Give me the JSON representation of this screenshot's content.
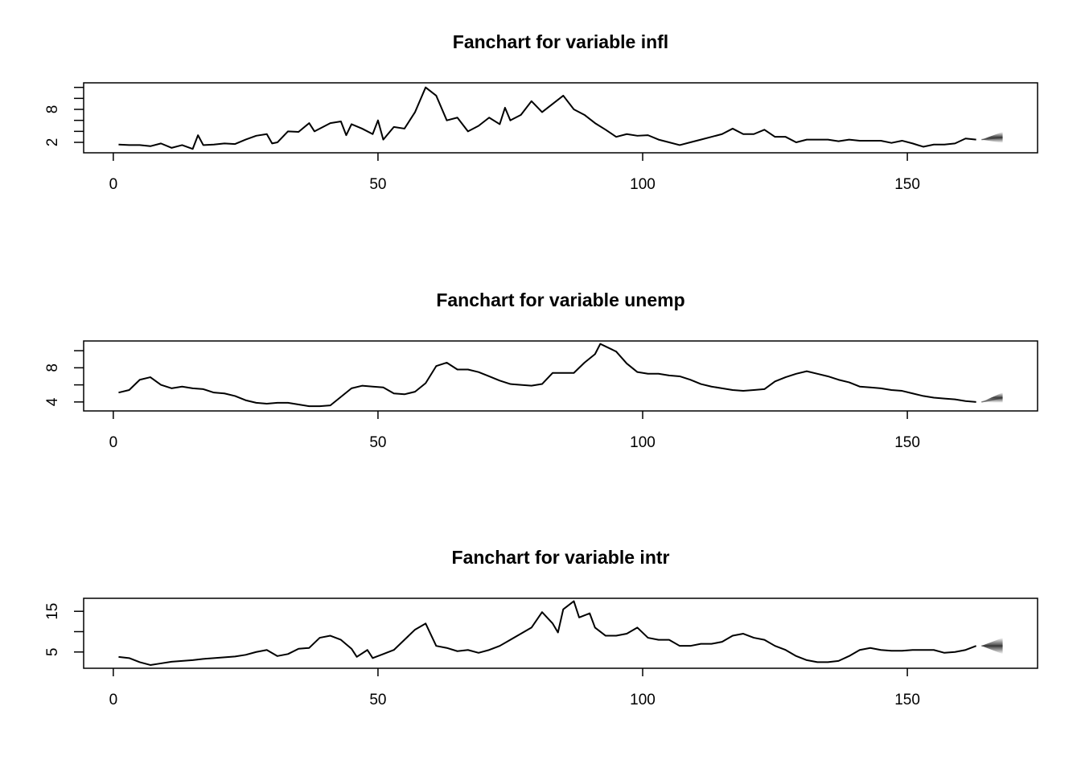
{
  "chart_data": [
    {
      "type": "line",
      "title": "Fanchart for variable infl",
      "xlim": [
        -5.6,
        174.6
      ],
      "xticks": [
        0,
        50,
        100,
        150
      ],
      "ylim": [
        0.1,
        12.83
      ],
      "yticks": [
        2,
        8
      ],
      "yticks_unlabeled": [
        4,
        6,
        10,
        12
      ],
      "series": [
        {
          "color": "#000000",
          "x": [
            1,
            3,
            5,
            7,
            9,
            11,
            13,
            15,
            16,
            17,
            19,
            21,
            23,
            25,
            27,
            29,
            30,
            31,
            33,
            35,
            37,
            38,
            41,
            43,
            44,
            45,
            47,
            49,
            50,
            51,
            53,
            55,
            57,
            59,
            61,
            63,
            65,
            67,
            69,
            71,
            73,
            74,
            75,
            77,
            79,
            81,
            83,
            85,
            87,
            89,
            91,
            93,
            95,
            97,
            99,
            101,
            103,
            105,
            107,
            109,
            111,
            113,
            115,
            117,
            119,
            121,
            123,
            125,
            127,
            129,
            131,
            133,
            135,
            137,
            139,
            141,
            143,
            145,
            147,
            149,
            151,
            153,
            155,
            157,
            159,
            161,
            163
          ],
          "values": [
            1.6,
            1.5,
            1.5,
            1.3,
            1.8,
            1.0,
            1.5,
            0.8,
            3.3,
            1.5,
            1.6,
            1.8,
            1.7,
            2.5,
            3.2,
            3.5,
            1.8,
            2.0,
            4.0,
            3.9,
            5.5,
            4.0,
            5.5,
            5.8,
            3.3,
            5.3,
            4.5,
            3.5,
            6.0,
            2.5,
            4.8,
            4.5,
            7.5,
            12.0,
            10.5,
            6.0,
            6.5,
            4.0,
            5.0,
            6.5,
            5.3,
            8.3,
            6.0,
            7.0,
            9.5,
            7.5,
            9.0,
            10.5,
            8.0,
            7.0,
            5.5,
            4.3,
            3.0,
            3.5,
            3.2,
            3.3,
            2.5,
            2.0,
            1.5,
            2.0,
            2.5,
            3.0,
            3.5,
            4.5,
            3.5,
            3.5,
            4.3,
            3.0,
            3.0,
            2.0,
            2.5,
            2.5,
            2.5,
            2.2,
            2.5,
            2.3,
            2.3,
            2.3,
            1.9,
            2.3,
            1.8,
            1.2,
            1.6,
            1.6,
            1.8,
            2.7,
            2.5
          ]
        }
      ],
      "fan": {
        "color": "#333333",
        "x": [
          164,
          168
        ],
        "center": [
          2.5,
          2.9
        ],
        "lower": [
          2.5,
          1.9
        ],
        "upper": [
          2.5,
          3.9
        ]
      }
    },
    {
      "type": "line",
      "title": "Fanchart for variable unemp",
      "xlim": [
        -5.6,
        174.6
      ],
      "xticks": [
        0,
        50,
        100,
        150
      ],
      "ylim": [
        2.95,
        11.14
      ],
      "yticks": [
        4,
        8
      ],
      "yticks_unlabeled": [
        6,
        10
      ],
      "series": [
        {
          "color": "#000000",
          "x": [
            1,
            3,
            5,
            7,
            9,
            11,
            13,
            15,
            17,
            19,
            21,
            23,
            25,
            27,
            29,
            31,
            33,
            35,
            37,
            39,
            41,
            43,
            45,
            47,
            49,
            51,
            53,
            55,
            57,
            59,
            61,
            63,
            65,
            67,
            69,
            71,
            73,
            75,
            77,
            79,
            81,
            83,
            85,
            87,
            89,
            91,
            92,
            93,
            95,
            97,
            99,
            101,
            103,
            105,
            107,
            109,
            111,
            113,
            115,
            117,
            119,
            121,
            123,
            125,
            127,
            129,
            131,
            133,
            135,
            137,
            139,
            141,
            143,
            145,
            147,
            149,
            151,
            153,
            155,
            157,
            159,
            161,
            163
          ],
          "values": [
            5.1,
            5.4,
            6.6,
            6.9,
            6.0,
            5.6,
            5.8,
            5.6,
            5.5,
            5.1,
            5.0,
            4.7,
            4.2,
            3.9,
            3.8,
            3.9,
            3.9,
            3.7,
            3.5,
            3.5,
            3.6,
            4.6,
            5.6,
            5.9,
            5.8,
            5.7,
            5.0,
            4.9,
            5.2,
            6.2,
            8.2,
            8.6,
            7.8,
            7.8,
            7.5,
            7.0,
            6.5,
            6.1,
            6.0,
            5.9,
            6.1,
            7.4,
            7.4,
            7.4,
            8.6,
            9.6,
            10.8,
            10.5,
            9.9,
            8.5,
            7.5,
            7.3,
            7.3,
            7.1,
            7.0,
            6.6,
            6.1,
            5.8,
            5.6,
            5.4,
            5.3,
            5.4,
            5.5,
            6.4,
            6.9,
            7.3,
            7.6,
            7.3,
            7.0,
            6.6,
            6.3,
            5.8,
            5.7,
            5.6,
            5.4,
            5.3,
            5.0,
            4.7,
            4.5,
            4.4,
            4.3,
            4.1,
            4.0
          ]
        }
      ],
      "fan": {
        "color": "#333333",
        "x": [
          164,
          168
        ],
        "center": [
          4.0,
          4.5
        ],
        "lower": [
          4.0,
          3.9
        ],
        "upper": [
          4.0,
          5.1
        ]
      }
    },
    {
      "type": "line",
      "title": "Fanchart for variable intr",
      "xlim": [
        -5.6,
        174.6
      ],
      "xticks": [
        0,
        50,
        100,
        150
      ],
      "ylim": [
        1,
        18.2
      ],
      "yticks": [
        5,
        15
      ],
      "yticks_unlabeled": [
        10
      ],
      "series": [
        {
          "color": "#000000",
          "x": [
            1,
            3,
            5,
            7,
            9,
            11,
            13,
            15,
            17,
            19,
            21,
            23,
            25,
            27,
            29,
            31,
            33,
            35,
            37,
            39,
            41,
            43,
            45,
            46,
            48,
            49,
            51,
            53,
            55,
            57,
            59,
            61,
            63,
            65,
            67,
            69,
            71,
            73,
            75,
            77,
            79,
            81,
            83,
            84,
            85,
            87,
            88,
            90,
            91,
            93,
            95,
            97,
            99,
            101,
            103,
            105,
            107,
            109,
            111,
            113,
            115,
            117,
            119,
            121,
            123,
            125,
            127,
            129,
            131,
            133,
            135,
            137,
            139,
            141,
            143,
            145,
            147,
            149,
            151,
            153,
            155,
            157,
            159,
            161,
            163
          ],
          "values": [
            3.8,
            3.5,
            2.5,
            1.8,
            2.2,
            2.6,
            2.8,
            3.0,
            3.3,
            3.5,
            3.7,
            3.9,
            4.3,
            5.0,
            5.5,
            4.0,
            4.5,
            5.8,
            6.0,
            8.5,
            9.0,
            8.0,
            5.8,
            3.8,
            5.5,
            3.5,
            4.5,
            5.5,
            8.0,
            10.5,
            12.0,
            6.5,
            6.0,
            5.2,
            5.5,
            4.8,
            5.5,
            6.5,
            8.0,
            9.5,
            11.0,
            14.8,
            12.0,
            9.8,
            15.5,
            17.5,
            13.5,
            14.5,
            11.0,
            9.0,
            9.0,
            9.5,
            11.0,
            8.5,
            8.0,
            8.0,
            6.5,
            6.5,
            7.0,
            7.0,
            7.5,
            9.0,
            9.5,
            8.5,
            8.0,
            6.5,
            5.5,
            4.0,
            3.0,
            2.5,
            2.5,
            2.8,
            4.0,
            5.5,
            6.0,
            5.5,
            5.3,
            5.3,
            5.5,
            5.5,
            5.5,
            4.8,
            5.0,
            5.5,
            6.5
          ]
        }
      ],
      "fan": {
        "color": "#333333",
        "x": [
          164,
          168
        ],
        "center": [
          6.5,
          6.5
        ],
        "lower": [
          6.5,
          4.5
        ],
        "upper": [
          6.5,
          8.5
        ]
      }
    }
  ]
}
